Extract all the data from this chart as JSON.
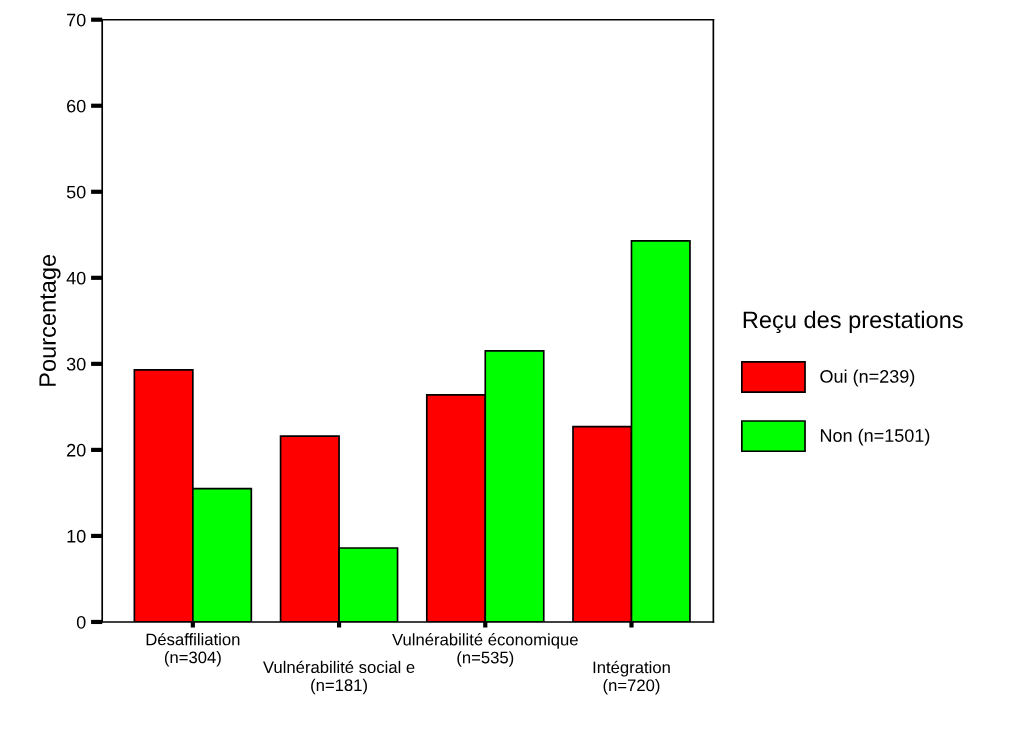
{
  "chart_data": {
    "type": "bar",
    "ylabel": "Pourcentage",
    "legend_title": "Reçu des prestations",
    "categories": [
      "Désaffiliation\n(n=304)",
      "Vulnérabilité social e\n(n=181)",
      "Vulnérabilité économique\n(n=535)",
      "Intégration\n(n=720)"
    ],
    "series": [
      {
        "name": "Oui (n=239)",
        "color": "#ff0000",
        "values": [
          29.3,
          21.6,
          26.4,
          22.7
        ]
      },
      {
        "name": "Non (n=1501)",
        "color": "#00ff00",
        "values": [
          15.5,
          8.6,
          31.5,
          44.3
        ]
      }
    ],
    "ylim": [
      0,
      70
    ],
    "yticks": [
      0,
      10,
      20,
      30,
      40,
      50,
      60,
      70
    ],
    "grid": false,
    "legend": "right"
  }
}
